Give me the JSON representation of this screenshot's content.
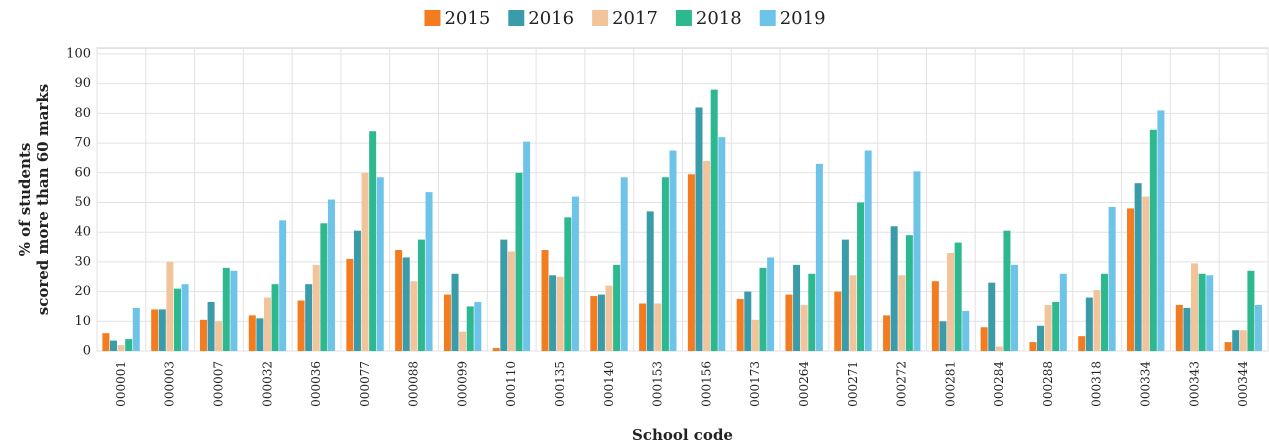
{
  "chart_data": {
    "type": "bar",
    "xlabel": "School code",
    "ylabel": [
      "% of students",
      "scored more than 60 marks"
    ],
    "categories": [
      "000001",
      "000003",
      "000007",
      "000032",
      "000036",
      "000077",
      "000088",
      "000099",
      "000110",
      "000135",
      "000140",
      "000153",
      "000156",
      "000173",
      "000264",
      "000271",
      "000272",
      "000281",
      "000284",
      "000288",
      "000318",
      "000334",
      "000343",
      "000344"
    ],
    "series": [
      {
        "name": "2015",
        "color": "#f47c20",
        "values": [
          6,
          14,
          10.5,
          12,
          17,
          31,
          34,
          19,
          1,
          34,
          18.5,
          16,
          59.5,
          17.5,
          19,
          20,
          12,
          23.5,
          8,
          3,
          5,
          48,
          15.5,
          3
        ]
      },
      {
        "name": "2016",
        "color": "#3a9ca8",
        "values": [
          3.5,
          14,
          16.5,
          11,
          22.5,
          40.5,
          31.5,
          26,
          37.5,
          25.5,
          19,
          47,
          82,
          20,
          29,
          37.5,
          42,
          10,
          23,
          8.5,
          18,
          56.5,
          14.5,
          7
        ]
      },
      {
        "name": "2017",
        "color": "#f2c49b",
        "values": [
          2,
          30,
          10,
          18,
          29,
          60,
          23.5,
          6.5,
          33.5,
          25,
          22,
          16,
          64,
          10.5,
          15.5,
          25.5,
          25.5,
          33,
          1.5,
          15.5,
          20.5,
          52,
          29.5,
          7
        ]
      },
      {
        "name": "2018",
        "color": "#2db890",
        "values": [
          4,
          21,
          28,
          22.5,
          43,
          74,
          37.5,
          15,
          60,
          45,
          29,
          58.5,
          88,
          28,
          26,
          50,
          39,
          36.5,
          40.5,
          16.5,
          26,
          74.5,
          26,
          27
        ]
      },
      {
        "name": "2019",
        "color": "#6ec4e8",
        "values": [
          14.5,
          22.5,
          27,
          44,
          51,
          58.5,
          53.5,
          16.5,
          70.5,
          52,
          58.5,
          67.5,
          72,
          31.5,
          63,
          67.5,
          60.5,
          13.5,
          29,
          26,
          48.5,
          81,
          25.5,
          15.5
        ]
      }
    ],
    "ylim": [
      0,
      102
    ],
    "yticks": [
      0,
      10,
      20,
      30,
      40,
      50,
      60,
      70,
      80,
      90,
      100
    ],
    "grid": true,
    "legend": "top"
  }
}
